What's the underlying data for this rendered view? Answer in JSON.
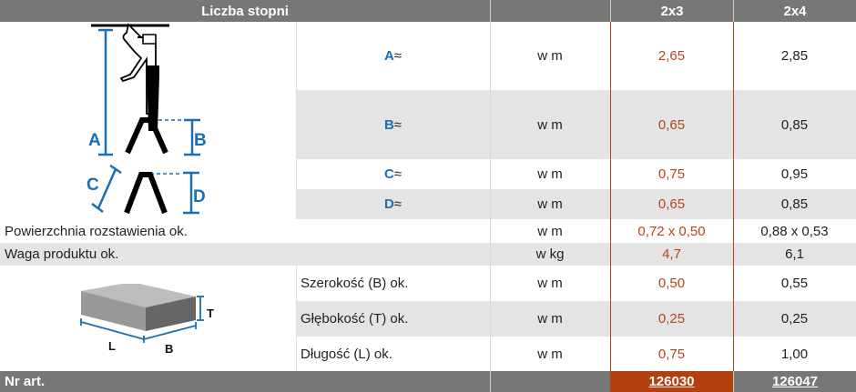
{
  "header": {
    "title": "Liczba stopni",
    "columns": [
      "2x3",
      "2x4"
    ]
  },
  "colors": {
    "accent": "#b5451b",
    "header": "#777777",
    "dimension_blue": "#1a6fb5",
    "stripe": "#e4e4e4"
  },
  "dimension_rows": [
    {
      "label": "A",
      "suffix": " ≈",
      "unit": "w m",
      "values": [
        "2,65",
        "2,85"
      ]
    },
    {
      "label": "B",
      "suffix": " ≈",
      "unit": "w m",
      "values": [
        "0,65",
        "0,85"
      ]
    },
    {
      "label": "C",
      "suffix": " ≈",
      "unit": "w m",
      "values": [
        "0,75",
        "0,95"
      ]
    },
    {
      "label": "D",
      "suffix": " ≈",
      "unit": "w m",
      "values": [
        "0,65",
        "0,85"
      ]
    }
  ],
  "rows": [
    {
      "label": "Powierzchnia rozstawienia ok.",
      "unit": "w m",
      "values": [
        "0,72 x 0,50",
        "0,88 x 0,53"
      ]
    },
    {
      "label": "Waga produktu ok.",
      "unit": "w kg",
      "values": [
        "4,7",
        "6,1"
      ]
    }
  ],
  "package_rows": [
    {
      "label": "Szerokość (B) ok.",
      "unit": "w m",
      "values": [
        "0,50",
        "0,55"
      ]
    },
    {
      "label": "Głębokość (T) ok.",
      "unit": "w m",
      "values": [
        "0,25",
        "0,25"
      ]
    },
    {
      "label": "Długość (L) ok.",
      "unit": "w m",
      "values": [
        "0,75",
        "1,00"
      ]
    }
  ],
  "diagram_labels": {
    "ladder": [
      "A",
      "B",
      "C",
      "D"
    ],
    "box": [
      "L",
      "B",
      "T"
    ]
  },
  "footer": {
    "label": "Nr art.",
    "articles": [
      "126030",
      "126047"
    ]
  }
}
